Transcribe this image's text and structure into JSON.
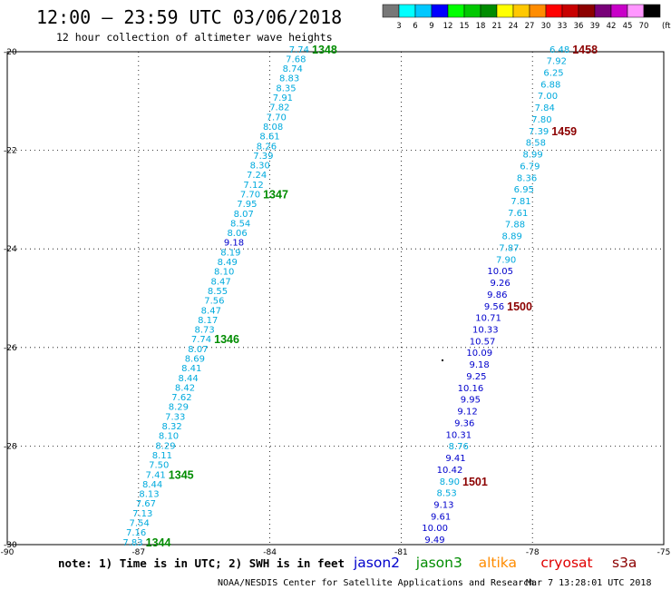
{
  "header": {
    "title": "12:00 – 23:59 UTC 03/06/2018",
    "subtitle": "12 hour collection of altimeter wave heights"
  },
  "colorbar": {
    "colors": [
      "#777777",
      "#00ffff",
      "#00c8ff",
      "#0000ff",
      "#00ff00",
      "#00c800",
      "#008c00",
      "#ffff00",
      "#ffc800",
      "#ff8c00",
      "#ff0000",
      "#c80000",
      "#8c0000",
      "#780078",
      "#c800c8",
      "#ff96ff",
      "#000000"
    ],
    "labels": [
      "3",
      "6",
      "9",
      "12",
      "15",
      "18",
      "21",
      "24",
      "27",
      "30",
      "33",
      "36",
      "39",
      "42",
      "45",
      "70",
      "(ft)"
    ]
  },
  "legend": {
    "note": "note: 1) Time is in UTC; 2) SWH is in feet",
    "satellites": [
      {
        "name": "jason2",
        "color": "#0000cc"
      },
      {
        "name": "jason3",
        "color": "#008c00"
      },
      {
        "name": "altika",
        "color": "#ff8c00"
      },
      {
        "name": "cryosat",
        "color": "#e00000"
      },
      {
        "name": "s3a",
        "color": "#8c0000"
      }
    ]
  },
  "credit": "NOAA/NESDIS Center for Satellite Applications and Research",
  "timestamp": "Mar  7 13:28:01 UTC 2018",
  "chart_data": {
    "type": "scatter",
    "xlim": [
      -90,
      -75
    ],
    "ylim": [
      -30,
      -20
    ],
    "x_ticks": [
      "-90",
      "-87",
      "-84",
      "-81",
      "-78",
      "-75"
    ],
    "y_ticks": [
      "-20",
      "-22",
      "-24",
      "-26",
      "-28",
      "-30"
    ],
    "x_tick_values": [
      -90,
      -87,
      -84,
      -81,
      -78,
      -75
    ],
    "y_tick_values": [
      -20,
      -22,
      -24,
      -26,
      -28,
      -30
    ],
    "grid": true,
    "tracks": [
      {
        "satellite": "jason3",
        "start": {
          "lon": -83.1,
          "lat": -19.95
        },
        "end": {
          "lon": -86.9,
          "lat": -29.95
        },
        "color": "#00aadd",
        "points": [
          {
            "v": "7.74",
            "c": "#00aadd"
          },
          {
            "v": "7.68",
            "c": "#00aadd"
          },
          {
            "v": "8.74",
            "c": "#00aadd"
          },
          {
            "v": "8.83",
            "c": "#00aadd"
          },
          {
            "v": "8.35",
            "c": "#00aadd"
          },
          {
            "v": "7.91",
            "c": "#00aadd"
          },
          {
            "v": "7.82",
            "c": "#00aadd"
          },
          {
            "v": "7.70",
            "c": "#00aadd"
          },
          {
            "v": "8.08",
            "c": "#00aadd"
          },
          {
            "v": "8.61",
            "c": "#00aadd"
          },
          {
            "v": "8.26",
            "c": "#00aadd"
          },
          {
            "v": "7.39",
            "c": "#00aadd"
          },
          {
            "v": "8.30",
            "c": "#00aadd"
          },
          {
            "v": "7.24",
            "c": "#00aadd"
          },
          {
            "v": "7.12",
            "c": "#00aadd"
          },
          {
            "v": "7.70",
            "c": "#00aadd"
          },
          {
            "v": "7.95",
            "c": "#00aadd"
          },
          {
            "v": "8.07",
            "c": "#00aadd"
          },
          {
            "v": "8.54",
            "c": "#00aadd"
          },
          {
            "v": "8.06",
            "c": "#00aadd"
          },
          {
            "v": "9.18",
            "c": "#0000cc"
          },
          {
            "v": "8.19",
            "c": "#00aadd"
          },
          {
            "v": "8.49",
            "c": "#00aadd"
          },
          {
            "v": "8.10",
            "c": "#00aadd"
          },
          {
            "v": "8.47",
            "c": "#00aadd"
          },
          {
            "v": "8.55",
            "c": "#00aadd"
          },
          {
            "v": "7.56",
            "c": "#00aadd"
          },
          {
            "v": "8.47",
            "c": "#00aadd"
          },
          {
            "v": "8.17",
            "c": "#00aadd"
          },
          {
            "v": "8.73",
            "c": "#00aadd"
          },
          {
            "v": "7.74",
            "c": "#00aadd"
          },
          {
            "v": "8.07",
            "c": "#00aadd"
          },
          {
            "v": "8.69",
            "c": "#00aadd"
          },
          {
            "v": "8.41",
            "c": "#00aadd"
          },
          {
            "v": "8.44",
            "c": "#00aadd"
          },
          {
            "v": "8.42",
            "c": "#00aadd"
          },
          {
            "v": "7.62",
            "c": "#00aadd"
          },
          {
            "v": "8.29",
            "c": "#00aadd"
          },
          {
            "v": "7.33",
            "c": "#00aadd"
          },
          {
            "v": "8.32",
            "c": "#00aadd"
          },
          {
            "v": "8.10",
            "c": "#00aadd"
          },
          {
            "v": "8.29",
            "c": "#00aadd"
          },
          {
            "v": "8.11",
            "c": "#00aadd"
          },
          {
            "v": "7.50",
            "c": "#00aadd"
          },
          {
            "v": "7.41",
            "c": "#00aadd"
          },
          {
            "v": "8.44",
            "c": "#00aadd"
          },
          {
            "v": "8.13",
            "c": "#00aadd"
          },
          {
            "v": "7.67",
            "c": "#00aadd"
          },
          {
            "v": "7.13",
            "c": "#00aadd"
          },
          {
            "v": "7.54",
            "c": "#00aadd"
          },
          {
            "v": "7.16",
            "c": "#00aadd"
          },
          {
            "v": "7.83",
            "c": "#00aadd"
          }
        ],
        "time_labels": [
          {
            "text": "1348",
            "index": 0,
            "color": "#008c00"
          },
          {
            "text": "1347",
            "index": 15,
            "color": "#008c00"
          },
          {
            "text": "1346",
            "index": 30,
            "color": "#008c00"
          },
          {
            "text": "1345",
            "index": 44,
            "color": "#008c00"
          },
          {
            "text": "1344",
            "index": 51,
            "color": "#008c00"
          }
        ]
      },
      {
        "satellite": "s3a",
        "start": {
          "lon": -77.15,
          "lat": -19.95
        },
        "end": {
          "lon": -80.0,
          "lat": -29.9
        },
        "color": "#00aadd",
        "points": [
          {
            "v": "6.48",
            "c": "#00aadd"
          },
          {
            "v": "7.92",
            "c": "#00aadd"
          },
          {
            "v": "6.25",
            "c": "#00aadd"
          },
          {
            "v": "6.88",
            "c": "#00aadd"
          },
          {
            "v": "7.00",
            "c": "#00aadd"
          },
          {
            "v": "7.84",
            "c": "#00aadd"
          },
          {
            "v": "7.80",
            "c": "#00aadd"
          },
          {
            "v": "7.39",
            "c": "#00aadd"
          },
          {
            "v": "8.58",
            "c": "#00aadd"
          },
          {
            "v": "8.99",
            "c": "#00aadd"
          },
          {
            "v": "6.79",
            "c": "#00aadd"
          },
          {
            "v": "8.36",
            "c": "#00aadd"
          },
          {
            "v": "6.95",
            "c": "#00aadd"
          },
          {
            "v": "7.81",
            "c": "#00aadd"
          },
          {
            "v": "7.61",
            "c": "#00aadd"
          },
          {
            "v": "7.88",
            "c": "#00aadd"
          },
          {
            "v": "8.89",
            "c": "#00aadd"
          },
          {
            "v": "7.87",
            "c": "#00aadd"
          },
          {
            "v": "7.90",
            "c": "#00aadd"
          },
          {
            "v": "10.05",
            "c": "#0000cc"
          },
          {
            "v": "9.26",
            "c": "#0000cc"
          },
          {
            "v": "9.86",
            "c": "#0000cc"
          },
          {
            "v": "9.56",
            "c": "#0000cc"
          },
          {
            "v": "10.71",
            "c": "#0000cc"
          },
          {
            "v": "10.33",
            "c": "#0000cc"
          },
          {
            "v": "10.57",
            "c": "#0000cc"
          },
          {
            "v": "10.09",
            "c": "#0000cc"
          },
          {
            "v": "9.18",
            "c": "#0000cc"
          },
          {
            "v": "9.25",
            "c": "#0000cc"
          },
          {
            "v": "10.16",
            "c": "#0000cc"
          },
          {
            "v": "9.95",
            "c": "#0000cc"
          },
          {
            "v": "9.12",
            "c": "#0000cc"
          },
          {
            "v": "9.36",
            "c": "#0000cc"
          },
          {
            "v": "10.31",
            "c": "#0000cc"
          },
          {
            "v": "8.76",
            "c": "#00aadd"
          },
          {
            "v": "9.41",
            "c": "#0000cc"
          },
          {
            "v": "10.42",
            "c": "#0000cc"
          },
          {
            "v": "8.90",
            "c": "#00aadd"
          },
          {
            "v": "8.53",
            "c": "#00aadd"
          },
          {
            "v": "9.13",
            "c": "#0000cc"
          },
          {
            "v": "9.61",
            "c": "#0000cc"
          },
          {
            "v": "10.00",
            "c": "#0000cc"
          },
          {
            "v": "9.49",
            "c": "#0000cc"
          }
        ],
        "time_labels": [
          {
            "text": "1458",
            "index": 0,
            "color": "#8c0000"
          },
          {
            "text": "1459",
            "index": 7,
            "color": "#8c0000"
          },
          {
            "text": "1500",
            "index": 22,
            "color": "#8c0000"
          },
          {
            "text": "1501",
            "index": 37,
            "color": "#8c0000"
          }
        ]
      }
    ]
  }
}
